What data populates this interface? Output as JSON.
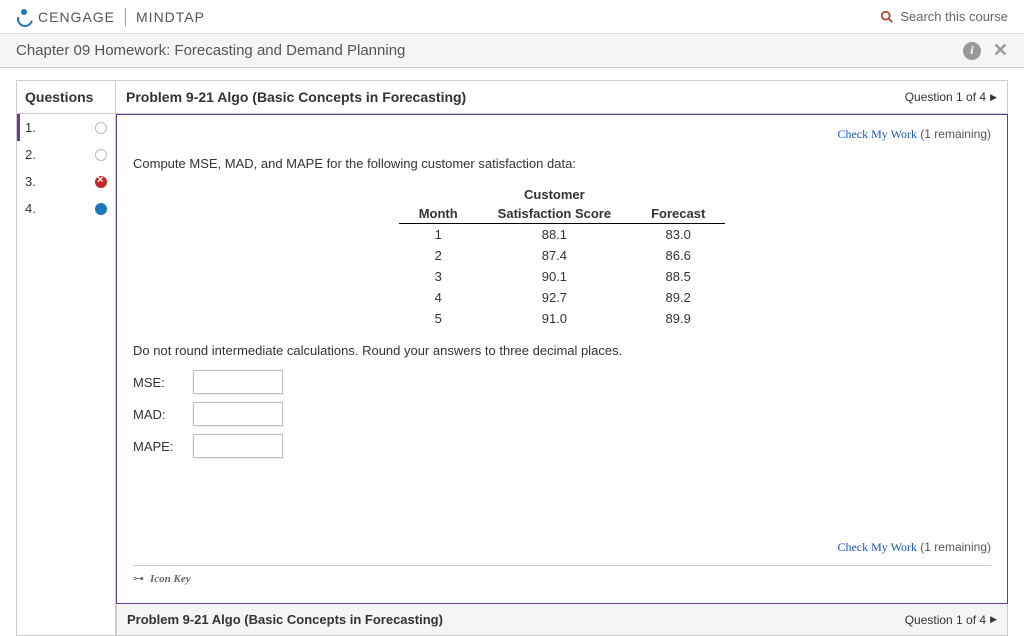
{
  "header": {
    "brand_left": "CENGAGE",
    "brand_right": "MINDTAP",
    "search_placeholder": "Search this course"
  },
  "chapter_bar": {
    "title": "Chapter 09 Homework: Forecasting and Demand Planning"
  },
  "sidebar": {
    "header": "Questions",
    "items": [
      {
        "num": "1.",
        "status": "empty",
        "current": true
      },
      {
        "num": "2.",
        "status": "empty",
        "current": false
      },
      {
        "num": "3.",
        "status": "wrong",
        "current": false
      },
      {
        "num": "4.",
        "status": "active",
        "current": false
      }
    ]
  },
  "problem": {
    "title": "Problem 9-21 Algo (Basic Concepts in Forecasting)",
    "nav_text": "Question 1 of 4",
    "check_label": "Check My Work",
    "check_remaining": "(1 remaining)",
    "prompt": "Compute MSE, MAD, and MAPE for the following customer satisfaction data:",
    "table": {
      "col_month": "Month",
      "col_score_top": "Customer",
      "col_score_bottom": "Satisfaction Score",
      "col_forecast": "Forecast",
      "rows": [
        {
          "month": "1",
          "score": "88.1",
          "forecast": "83.0"
        },
        {
          "month": "2",
          "score": "87.4",
          "forecast": "86.6"
        },
        {
          "month": "3",
          "score": "90.1",
          "forecast": "88.5"
        },
        {
          "month": "4",
          "score": "92.7",
          "forecast": "89.2"
        },
        {
          "month": "5",
          "score": "91.0",
          "forecast": "89.9"
        }
      ]
    },
    "instructions": "Do not round intermediate calculations. Round your answers to three decimal places.",
    "answers": [
      {
        "label": "MSE:"
      },
      {
        "label": "MAD:"
      },
      {
        "label": "MAPE:"
      }
    ],
    "icon_key_label": "Icon Key"
  }
}
